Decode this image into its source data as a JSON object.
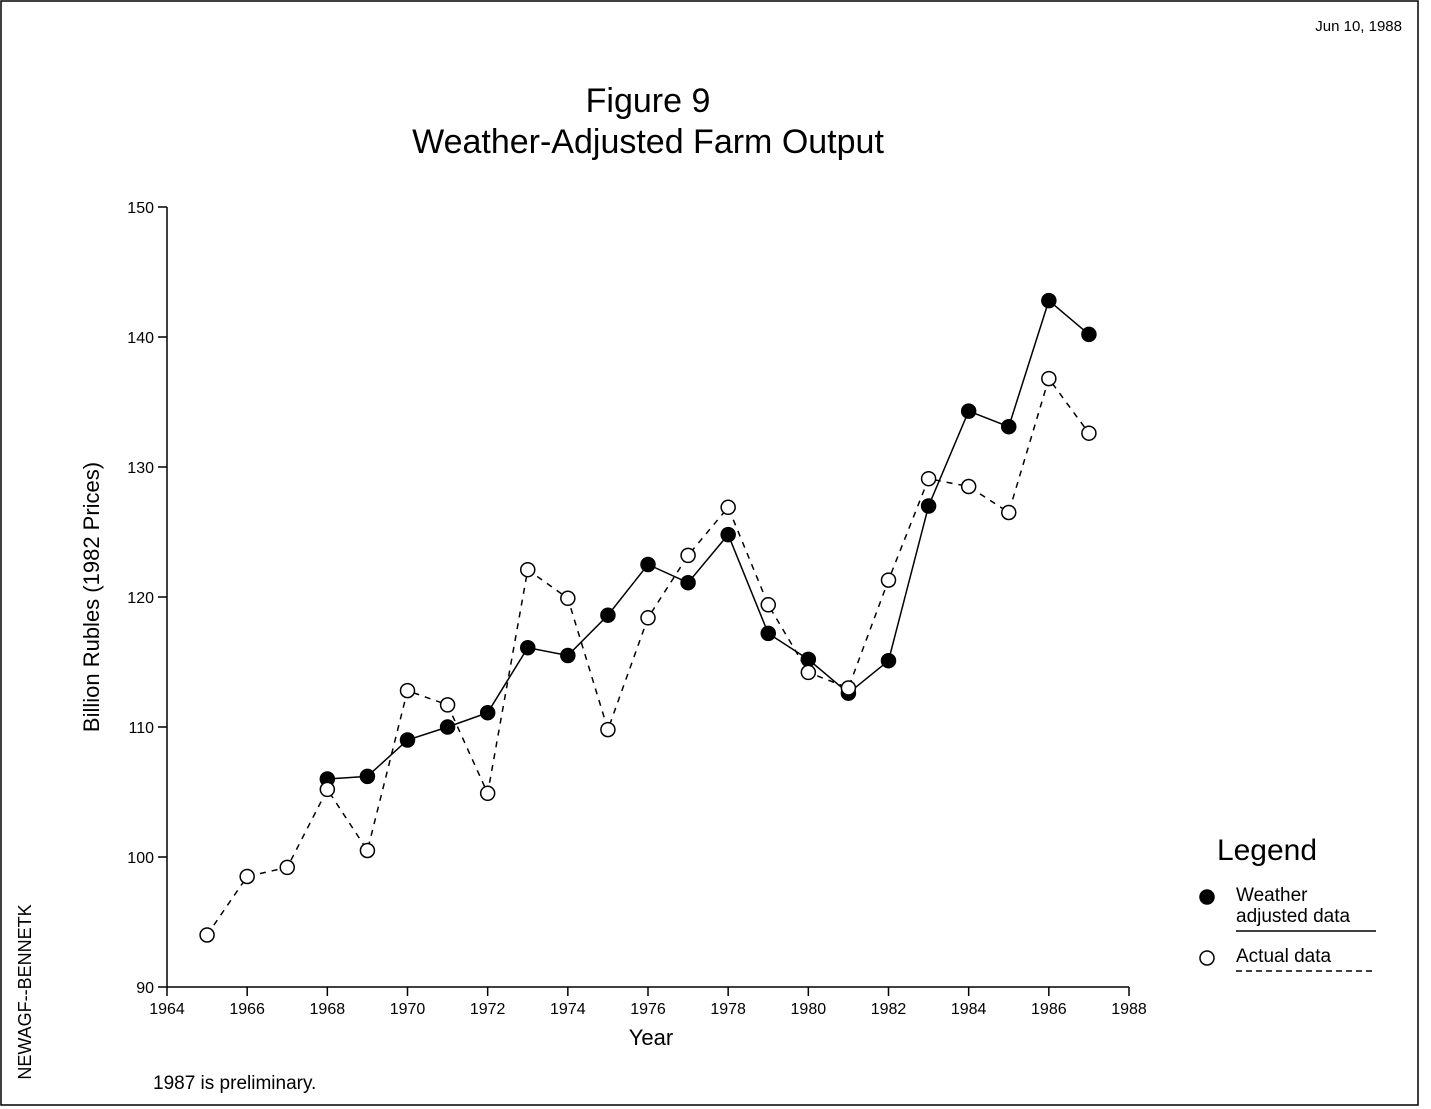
{
  "date": "Jun 10, 1988",
  "side_label": "NEWAGF--BENNETK",
  "chart_data": {
    "type": "line",
    "title": "Figure 9",
    "subtitle": "Weather-Adjusted Farm Output",
    "x_label": "Year",
    "y_label": "Billion Rubles (1982 Prices)",
    "x": [
      1965,
      1966,
      1967,
      1968,
      1969,
      1970,
      1971,
      1972,
      1973,
      1974,
      1975,
      1976,
      1977,
      1978,
      1979,
      1980,
      1981,
      1982,
      1983,
      1984,
      1985,
      1986,
      1987
    ],
    "series": [
      {
        "name": "Weather adjusted data",
        "color": "#000000",
        "style": "solid",
        "marker": "filled",
        "values": [
          null,
          null,
          null,
          106.0,
          106.2,
          109.0,
          110.0,
          111.1,
          116.1,
          115.5,
          118.6,
          122.5,
          121.1,
          124.8,
          117.2,
          115.2,
          112.6,
          115.1,
          127.0,
          134.3,
          133.1,
          142.8,
          140.2
        ]
      },
      {
        "name": "Actual data",
        "color": "#000000",
        "style": "dashed",
        "marker": "open",
        "values": [
          94.0,
          98.5,
          99.2,
          105.2,
          100.5,
          112.8,
          111.7,
          104.9,
          122.1,
          119.9,
          109.8,
          118.4,
          123.2,
          126.9,
          119.4,
          114.2,
          113.0,
          121.3,
          129.1,
          128.5,
          126.5,
          136.8,
          132.6
        ]
      }
    ],
    "xlim": [
      1964,
      1988
    ],
    "xticks": [
      1964,
      1966,
      1968,
      1970,
      1972,
      1974,
      1976,
      1978,
      1980,
      1982,
      1984,
      1986,
      1988
    ],
    "ylim": [
      90,
      150
    ],
    "yticks": [
      90,
      100,
      110,
      120,
      130,
      140,
      150
    ],
    "grid": false,
    "legend": "right",
    "legend_title": "Legend",
    "note": "1987 is preliminary."
  }
}
